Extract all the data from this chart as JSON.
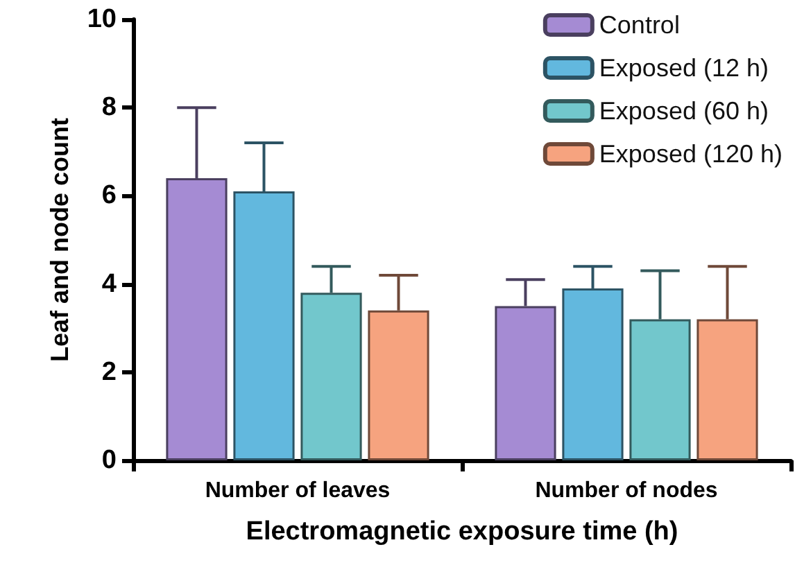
{
  "chart_data": {
    "type": "bar",
    "xlabel": "Electromagnetic exposure time (h)",
    "ylabel": "Leaf and node count",
    "categories": [
      "Number of leaves",
      "Number of nodes"
    ],
    "series": [
      {
        "name": "Control",
        "color": "#a58bd3",
        "values": [
          6.4,
          3.5
        ],
        "errors": [
          [
            6.4,
            8.0
          ],
          [
            3.5,
            4.1
          ]
        ]
      },
      {
        "name": "Exposed (12 h)",
        "color": "#62b8de",
        "values": [
          6.1,
          3.9
        ],
        "errors": [
          [
            6.1,
            7.2
          ],
          [
            3.9,
            4.4
          ]
        ]
      },
      {
        "name": "Exposed (60 h)",
        "color": "#72c7cc",
        "values": [
          3.8,
          3.2
        ],
        "errors": [
          [
            3.8,
            4.4
          ],
          [
            3.2,
            4.3
          ]
        ]
      },
      {
        "name": "Exposed (120 h)",
        "color": "#f6a37f",
        "values": [
          3.4,
          3.2
        ],
        "errors": [
          [
            3.4,
            4.2
          ],
          [
            3.2,
            4.4
          ]
        ]
      }
    ],
    "ylim": [
      0,
      10
    ],
    "yticks": [
      0,
      2,
      4,
      6,
      8,
      10
    ],
    "grid": false,
    "legend": "top right"
  }
}
